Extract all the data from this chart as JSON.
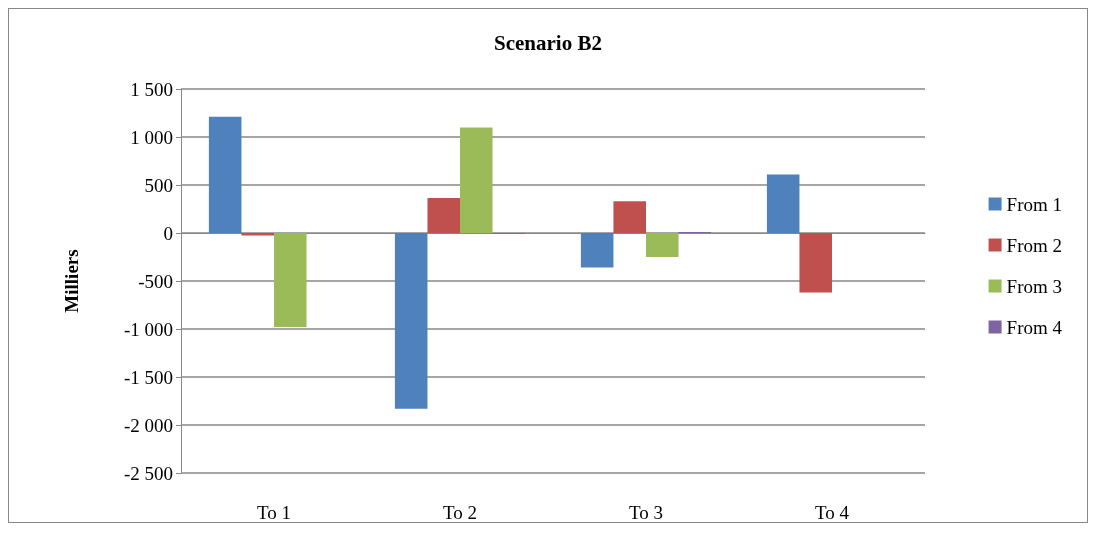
{
  "chart_data": {
    "type": "bar",
    "title": "Scenario B2",
    "ylabel": "Milliers",
    "categories": [
      "To 1",
      "To 2",
      "To 3",
      "To 4"
    ],
    "series": [
      {
        "name": "From 1",
        "color": "#4f81bd",
        "values": [
          1210,
          -1830,
          -360,
          610
        ]
      },
      {
        "name": "From 2",
        "color": "#c0504d",
        "values": [
          -25,
          365,
          330,
          -620
        ]
      },
      {
        "name": "From 3",
        "color": "#9bbb59",
        "values": [
          -980,
          1100,
          -250,
          0
        ]
      },
      {
        "name": "From 4",
        "color": "#8064a2",
        "values": [
          0,
          -10,
          10,
          0
        ]
      }
    ],
    "ylim": [
      -2500,
      1500
    ],
    "yticks": [
      {
        "value": -2500,
        "label": "-2 500"
      },
      {
        "value": -2000,
        "label": "-2 000"
      },
      {
        "value": -1500,
        "label": "-1 500"
      },
      {
        "value": -1000,
        "label": "-1 000"
      },
      {
        "value": -500,
        "label": "-500"
      },
      0,
      500,
      {
        "value": 1000,
        "label": "1 000"
      },
      {
        "value": 1500,
        "label": "1 500"
      }
    ],
    "grid": "y",
    "legend": "right"
  }
}
